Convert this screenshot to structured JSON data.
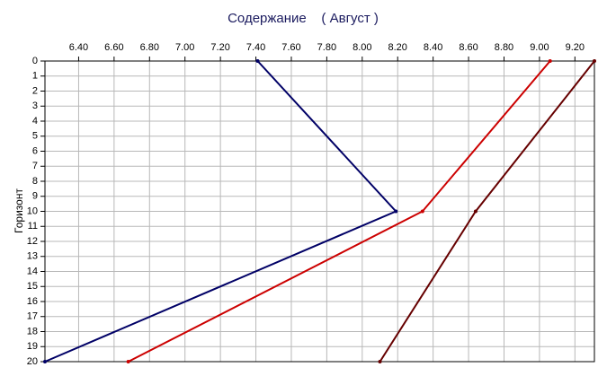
{
  "chart_data": {
    "type": "line",
    "title": "Содержание    ( Август )",
    "y_label": "Горизонт",
    "y": [
      0,
      10,
      20
    ],
    "series": [
      {
        "color": "#000066",
        "x": [
          7.41,
          8.19,
          6.21
        ]
      },
      {
        "color": "#cc0000",
        "x": [
          9.06,
          8.34,
          6.68
        ]
      },
      {
        "color": "#660000",
        "x": [
          9.31,
          8.64,
          8.1
        ]
      }
    ],
    "xlim": [
      6.21,
      9.31
    ],
    "xticks": [
      {
        "value": 6.4,
        "label": "6.40"
      },
      {
        "value": 6.6,
        "label": "6.60"
      },
      {
        "value": 6.8,
        "label": "6.80"
      },
      {
        "value": 7.0,
        "label": "7.00"
      },
      {
        "value": 7.2,
        "label": "7.20"
      },
      {
        "value": 7.4,
        "label": "7.40"
      },
      {
        "value": 7.6,
        "label": "7.60"
      },
      {
        "value": 7.8,
        "label": "7.80"
      },
      {
        "value": 8.0,
        "label": "8.00"
      },
      {
        "value": 8.2,
        "label": "8.20"
      },
      {
        "value": 8.4,
        "label": "8.40"
      },
      {
        "value": 8.6,
        "label": "8.60"
      },
      {
        "value": 8.8,
        "label": "8.80"
      },
      {
        "value": 9.0,
        "label": "9.00"
      },
      {
        "value": 9.2,
        "label": "9.20"
      }
    ],
    "ylim": [
      0,
      20
    ],
    "y_inverted": true,
    "yticks": [
      0,
      1,
      2,
      3,
      4,
      5,
      6,
      7,
      8,
      9,
      10,
      11,
      12,
      13,
      14,
      15,
      16,
      17,
      18,
      19,
      20
    ],
    "grid": true
  }
}
